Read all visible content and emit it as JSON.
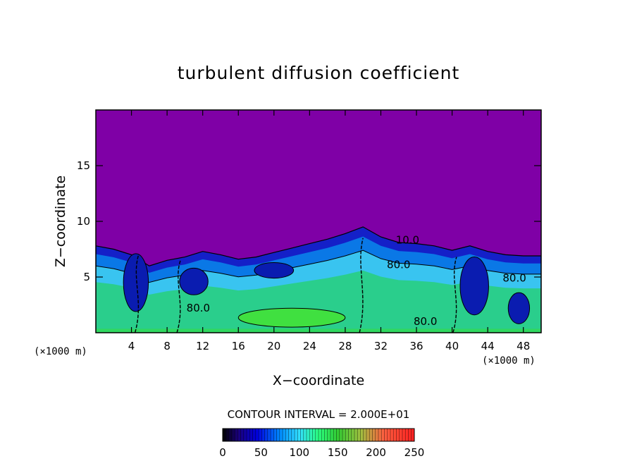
{
  "chart_data": {
    "type": "heatmap",
    "title": "turbulent diffusion coefficient",
    "xlabel": "X−coordinate",
    "ylabel": "Z−coordinate",
    "x_unit_label": "(×1000 m)",
    "y_unit_label": "(×1000 m)",
    "xlim": [
      0,
      50
    ],
    "ylim": [
      0,
      20
    ],
    "x_ticks": [
      4,
      8,
      12,
      16,
      20,
      24,
      28,
      32,
      36,
      40,
      44,
      48
    ],
    "y_ticks": [
      5,
      10,
      15
    ],
    "contour_interval_label": "CONTOUR INTERVAL = 2.000E+01",
    "contour_interval": 20,
    "colorbar": {
      "min": 0,
      "max": 250,
      "ticks": [
        0,
        50,
        100,
        150,
        200,
        250
      ]
    },
    "contour_labels": [
      {
        "text": "80.0",
        "x": 11.5,
        "z": 1.9
      },
      {
        "text": "80.0",
        "x": 34.0,
        "z": 5.8
      },
      {
        "text": "80.0",
        "x": 47.0,
        "z": 4.6
      },
      {
        "text": "80.0",
        "x": 37.0,
        "z": 0.7
      },
      {
        "text": "10.0",
        "x": 35.0,
        "z": 8.0
      }
    ],
    "background_value": 0,
    "layer_top_profile": {
      "x": [
        0,
        2,
        4,
        6,
        8,
        10,
        12,
        14,
        16,
        18,
        20,
        22,
        24,
        26,
        28,
        30,
        32,
        34,
        36,
        38,
        40,
        42,
        44,
        46,
        48,
        50
      ],
      "z": [
        7.8,
        7.5,
        7.0,
        6.0,
        6.5,
        6.8,
        7.3,
        7.0,
        6.6,
        6.8,
        7.2,
        7.6,
        8.0,
        8.4,
        8.9,
        9.5,
        8.6,
        8.1,
        8.0,
        7.8,
        7.4,
        7.8,
        7.3,
        7.0,
        6.9,
        6.9
      ]
    },
    "core_region": {
      "description_values": "high-diffusion core near the surface",
      "x_range": [
        16,
        28
      ],
      "z_range": [
        0.5,
        2.2
      ],
      "value": 130
    }
  }
}
